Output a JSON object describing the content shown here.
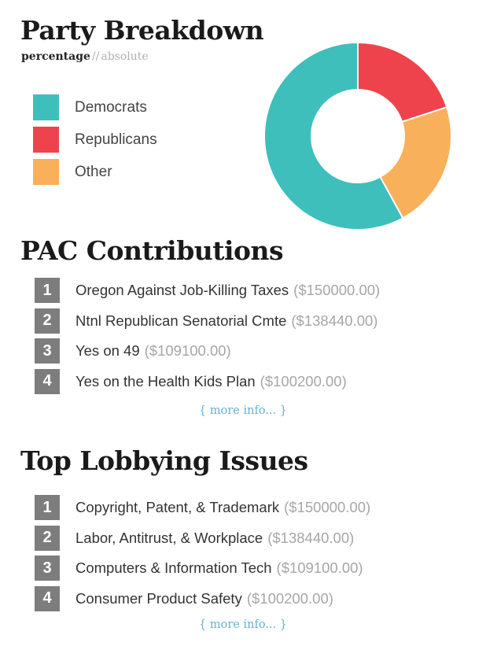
{
  "party": {
    "title": "Party Breakdown",
    "toggle": {
      "active": "percentage",
      "separator": "//",
      "inactive": "absolute"
    }
  },
  "chart_data": {
    "type": "pie",
    "donut": true,
    "categories": [
      "Democrats",
      "Republicans",
      "Other"
    ],
    "values": [
      58,
      20,
      22
    ],
    "colors": [
      "#3fbfbb",
      "#ee434d",
      "#f8b05a"
    ],
    "legend": "left"
  },
  "pac": {
    "title": "PAC Contributions",
    "items": [
      {
        "rank": "1",
        "label": "Oregon Against Job-Killing Taxes",
        "amount": "($150000.00)"
      },
      {
        "rank": "2",
        "label": "Ntnl Republican Senatorial Cmte",
        "amount": "($138440.00)"
      },
      {
        "rank": "3",
        "label": "Yes on 49",
        "amount": "($109100.00)"
      },
      {
        "rank": "4",
        "label": "Yes on the Health Kids Plan",
        "amount": "($100200.00)"
      }
    ],
    "more": "more info..."
  },
  "lobbying": {
    "title": "Top Lobbying Issues",
    "items": [
      {
        "rank": "1",
        "label": "Copyright, Patent, & Trademark",
        "amount": "($150000.00)"
      },
      {
        "rank": "2",
        "label": "Labor, Antitrust, & Workplace",
        "amount": "($138440.00)"
      },
      {
        "rank": "3",
        "label": "Computers & Information Tech",
        "amount": "($109100.00)"
      },
      {
        "rank": "4",
        "label": "Consumer Product Safety",
        "amount": "($100200.00)"
      }
    ],
    "more": "more info..."
  }
}
